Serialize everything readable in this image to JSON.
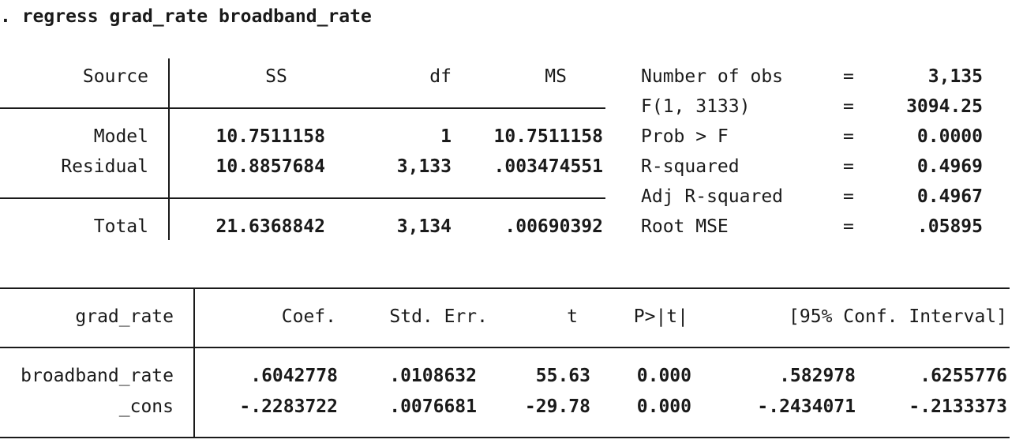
{
  "command": ". regress grad_rate broadband_rate",
  "anova": {
    "headers": {
      "source": "Source",
      "ss": "SS",
      "df": "df",
      "ms": "MS"
    },
    "rows": [
      {
        "source": "Model",
        "ss": "10.7511158",
        "df": "1",
        "ms": "10.7511158"
      },
      {
        "source": "Residual",
        "ss": "10.8857684",
        "df": "3,133",
        "ms": ".003474551"
      },
      {
        "source": "Total",
        "ss": "21.6368842",
        "df": "3,134",
        "ms": ".00690392"
      }
    ]
  },
  "stats": [
    {
      "label": "Number of obs",
      "eq": "=",
      "value": "3,135"
    },
    {
      "label": "F(1, 3133)",
      "eq": "=",
      "value": "3094.25"
    },
    {
      "label": "Prob > F",
      "eq": "=",
      "value": "0.0000"
    },
    {
      "label": "R-squared",
      "eq": "=",
      "value": "0.4969"
    },
    {
      "label": "Adj R-squared",
      "eq": "=",
      "value": "0.4967"
    },
    {
      "label": "Root MSE",
      "eq": "=",
      "value": ".05895"
    }
  ],
  "coef": {
    "headers": {
      "var": "grad_rate",
      "coef": "Coef.",
      "se": "Std. Err.",
      "t": "t",
      "p": "P>|t|",
      "ci": "[95% Conf. Interval]"
    },
    "rows": [
      {
        "var": "broadband_rate",
        "coef": ".6042778",
        "se": ".0108632",
        "t": "55.63",
        "p": "0.000",
        "lo": ".582978",
        "hi": ".6255776"
      },
      {
        "var": "_cons",
        "coef": "-.2283722",
        "se": ".0076681",
        "t": "-29.78",
        "p": "0.000",
        "lo": "-.2434071",
        "hi": "-.2133373"
      }
    ]
  }
}
